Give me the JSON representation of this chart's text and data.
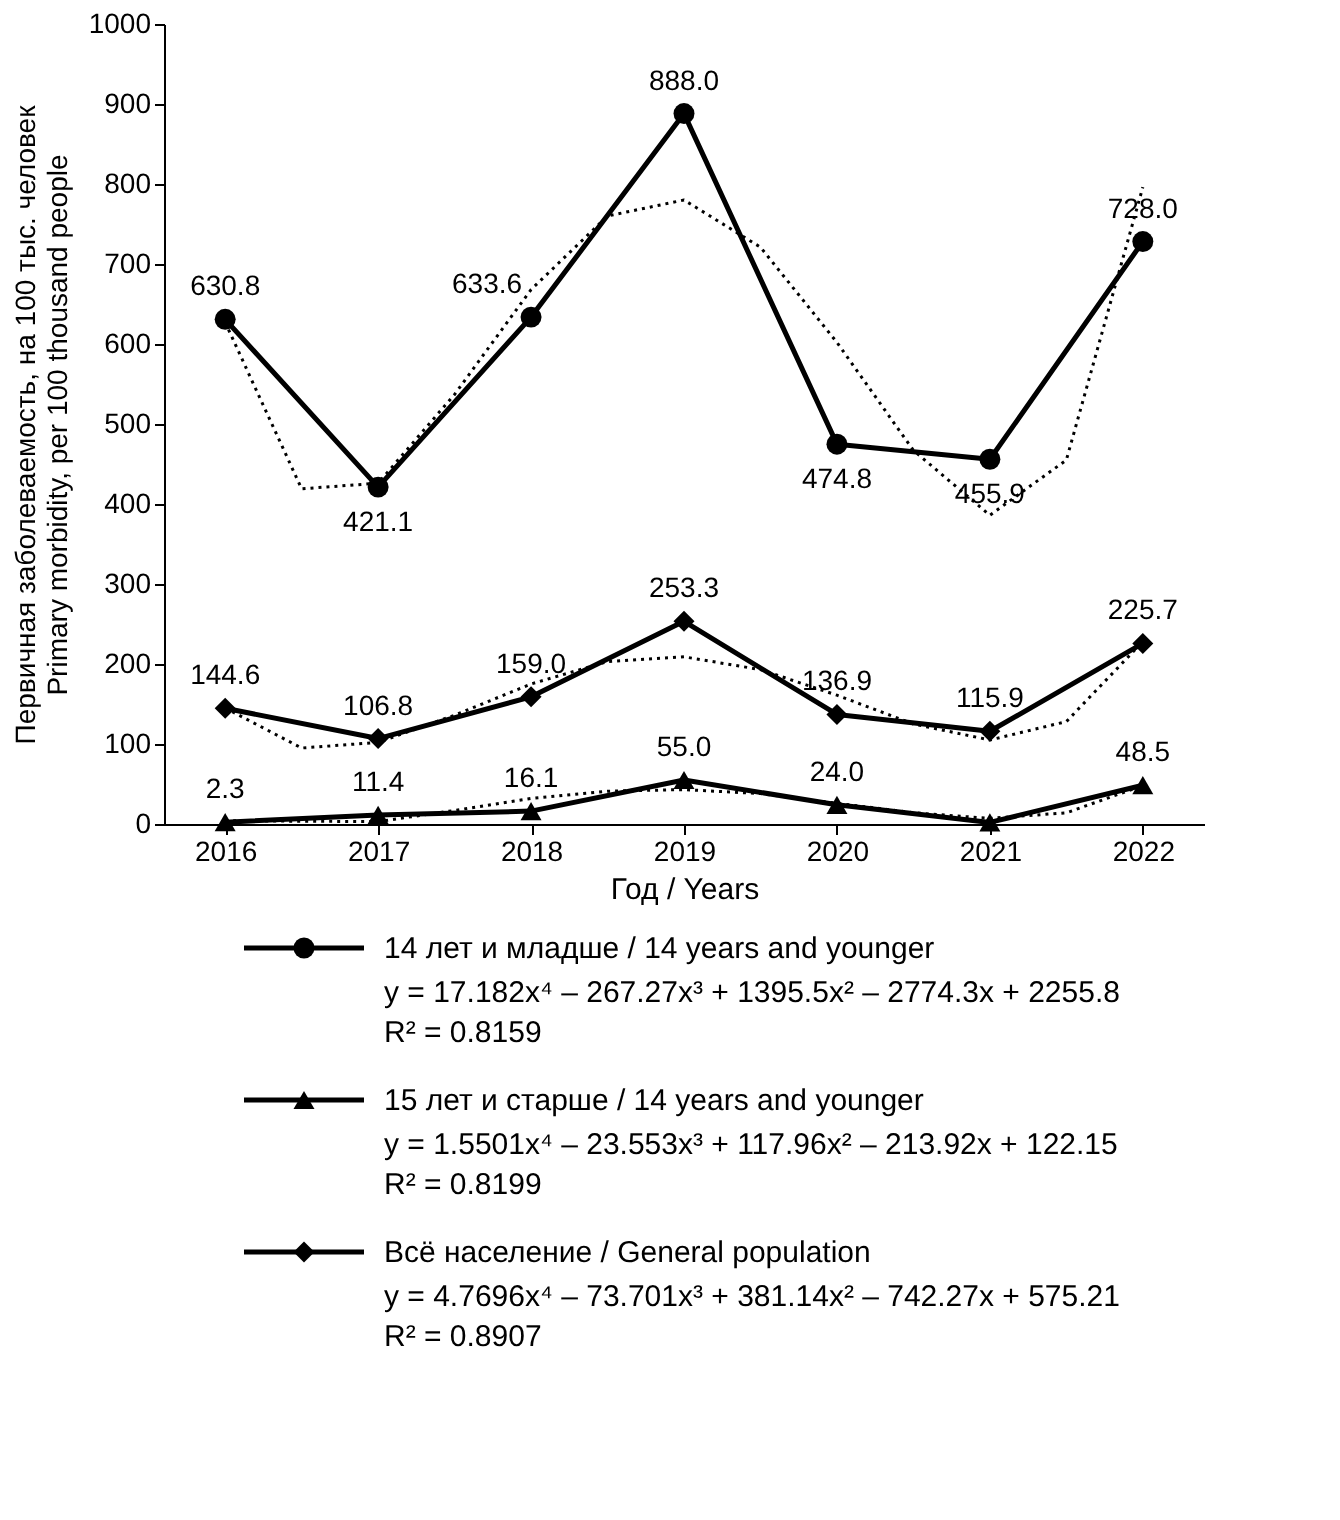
{
  "chart_data": {
    "type": "line",
    "xlabel": "Год / Years",
    "ylabel": "Первичная заболеваемость, на 100 тыс. человек\nPrimary morbidity, per 100 thousand people",
    "x": [
      2016,
      2017,
      2018,
      2019,
      2020,
      2021,
      2022
    ],
    "xlim": [
      2015.6,
      2022.4
    ],
    "xticks": [
      2016,
      2017,
      2018,
      2019,
      2020,
      2021,
      2022
    ],
    "ylim": [
      0,
      1000
    ],
    "yticks": [
      0,
      100,
      200,
      300,
      400,
      500,
      600,
      700,
      800,
      900,
      1000
    ],
    "grid": false,
    "legend": "bottom",
    "series": [
      {
        "name": "14 лет и младше / 14 years and younger",
        "color": "#000000",
        "marker": "circle",
        "line_style": "solid",
        "values": [
          630.8,
          421.1,
          633.6,
          888.0,
          474.8,
          455.9,
          728.0
        ],
        "value_labels": [
          "630.8",
          "421.1",
          "633.6",
          "888.0",
          "474.8",
          "455.9",
          "728.0"
        ]
      },
      {
        "name": "15 лет и старше / 14 years and younger",
        "color": "#000000",
        "marker": "triangle",
        "line_style": "solid",
        "values": [
          2.3,
          11.4,
          16.1,
          55.0,
          24.0,
          2,
          48.5
        ],
        "value_labels": [
          "2.3",
          "11.4",
          "16.1",
          "55.0",
          "24.0",
          null,
          "48.5"
        ]
      },
      {
        "name": "Всё население / General population",
        "color": "#000000",
        "marker": "diamond",
        "line_style": "solid",
        "values": [
          144.6,
          106.8,
          159.0,
          253.3,
          136.9,
          115.9,
          225.7
        ],
        "value_labels": [
          "144.6",
          "106.8",
          "159.0",
          "253.3",
          "136.9",
          "115.9",
          "225.7"
        ]
      },
      {
        "type": "line",
        "color": "#000000",
        "marker": "none",
        "line_style": "dotted",
        "x": [
          2016,
          2016.5,
          2017,
          2017.5,
          2018,
          2018.5,
          2019,
          2019.5,
          2020,
          2020.5,
          2021,
          2021.5,
          2022
        ],
        "values": [
          627,
          419,
          426,
          537,
          668,
          760,
          780,
          721,
          602,
          467,
          386,
          455,
          796
        ]
      },
      {
        "type": "line",
        "color": "#000000",
        "marker": "none",
        "line_style": "dotted",
        "x": [
          2016,
          2017,
          2017.5,
          2018,
          2018.5,
          2019,
          2019.5,
          2020,
          2020.5,
          2021,
          2021.5,
          2022
        ],
        "values": [
          4,
          3,
          17,
          32,
          41,
          43,
          38,
          26,
          14,
          7,
          14,
          48
        ]
      },
      {
        "type": "line",
        "color": "#000000",
        "marker": "none",
        "line_style": "dotted",
        "x": [
          2016,
          2016.5,
          2017,
          2017.5,
          2018,
          2018.5,
          2019,
          2019.5,
          2020,
          2020.5,
          2021,
          2021.5,
          2022
        ],
        "values": [
          145,
          95,
          102,
          136,
          175,
          203,
          209,
          193,
          161,
          125,
          105,
          128,
          228
        ]
      }
    ],
    "annotations": [
      "y = 17.182x⁴ – 267.27x³ + 1395.5x² – 2774.3x + 2255.8",
      "R² = 0.8159",
      "y = 1.5501x⁴ – 23.553x³ + 117.96x² – 213.92x + 122.15",
      "R² = 0.8199",
      "y = 4.7696x⁴ – 73.701x³ + 381.14x² – 742.27x + 575.21",
      "R² = 0.8907"
    ]
  }
}
